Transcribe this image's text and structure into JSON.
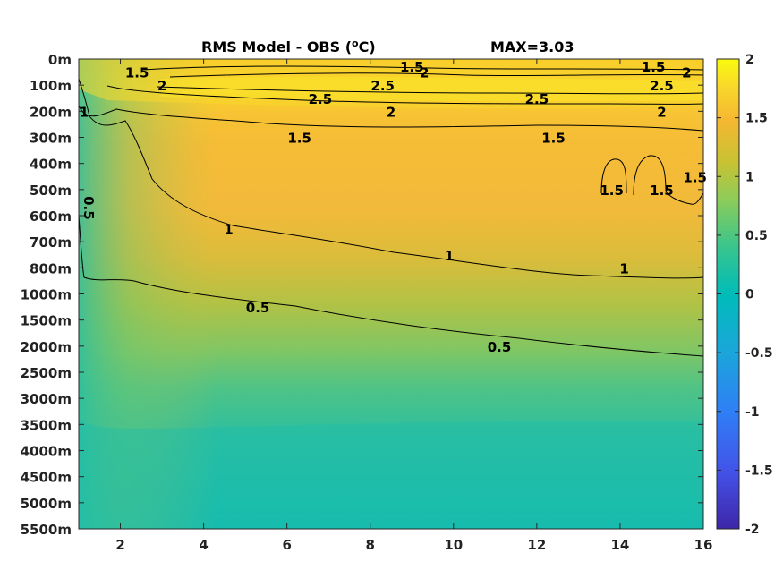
{
  "chart_data": {
    "type": "heatmap",
    "title": "RMS Model - OBS (°C)",
    "title_parts": {
      "main": "RMS Model - OBS (",
      "superscript": "o",
      "unit_end": "C)"
    },
    "max_label": "MAX=3.03",
    "x_ticks": [
      "2",
      "4",
      "6",
      "8",
      "10",
      "12",
      "14",
      "16"
    ],
    "x_tick_values": [
      2,
      4,
      6,
      8,
      10,
      12,
      14,
      16
    ],
    "xlim": [
      1,
      16
    ],
    "y_tick_labels": [
      "0m",
      "100m",
      "200m",
      "300m",
      "400m",
      "500m",
      "600m",
      "700m",
      "800m",
      "1000m",
      "1500m",
      "2000m",
      "2500m",
      "3000m",
      "3500m",
      "4000m",
      "4500m",
      "5000m",
      "5500m"
    ],
    "y_axis_reversed": true,
    "colorbar": {
      "ticks": [
        "2",
        "1.5",
        "1",
        "0.5",
        "0",
        "-0.5",
        "-1",
        "-1.5",
        "-2"
      ],
      "range": [
        -2,
        2
      ],
      "colormap": [
        "#3e26a8",
        "#4352e8",
        "#2f7ff6",
        "#1aa7d9",
        "#00bcb9",
        "#39c58c",
        "#8ccc5a",
        "#c8c233",
        "#f5b731",
        "#f9d72b",
        "#f9fb0e"
      ]
    },
    "contour_labels": [
      {
        "text": "1.5",
        "x": 2.4,
        "depth": "0-100m"
      },
      {
        "text": "2",
        "x": 3.0,
        "depth": "100m"
      },
      {
        "text": "1.5",
        "x": 9.0,
        "depth": "0m"
      },
      {
        "text": "2",
        "x": 9.3,
        "depth": "0-100m"
      },
      {
        "text": "2.5",
        "x": 8.3,
        "depth": "100m"
      },
      {
        "text": "2.5",
        "x": 6.8,
        "depth": "100-200m"
      },
      {
        "text": "2",
        "x": 8.5,
        "depth": "200m"
      },
      {
        "text": "1.5",
        "x": 6.3,
        "depth": "300m"
      },
      {
        "text": "1.5",
        "x": 14.8,
        "depth": "0m"
      },
      {
        "text": "2",
        "x": 15.6,
        "depth": "0-100m"
      },
      {
        "text": "2.5",
        "x": 15.0,
        "depth": "100m"
      },
      {
        "text": "2.5",
        "x": 12.0,
        "depth": "100-200m"
      },
      {
        "text": "2",
        "x": 15.0,
        "depth": "200m"
      },
      {
        "text": "1.5",
        "x": 12.4,
        "depth": "300m"
      },
      {
        "text": "1",
        "x": 1.1,
        "depth": "200m"
      },
      {
        "text": "0.5",
        "x": 1.0,
        "depth": "500-600m"
      },
      {
        "text": "1",
        "x": 4.6,
        "depth": "600-700m"
      },
      {
        "text": "1",
        "x": 9.9,
        "depth": "700-800m"
      },
      {
        "text": "1",
        "x": 14.1,
        "depth": "800m"
      },
      {
        "text": "1.5",
        "x": 13.8,
        "depth": "500m"
      },
      {
        "text": "1.5",
        "x": 15.0,
        "depth": "500m"
      },
      {
        "text": "1.5",
        "x": 15.8,
        "depth": "400-500m"
      },
      {
        "text": "0.5",
        "x": 5.3,
        "depth": "1000-1500m"
      },
      {
        "text": "0.5",
        "x": 11.1,
        "depth": "2000m"
      }
    ],
    "description_values": {
      "surface_layer_rms": "2.5 max near 100-200m",
      "deep_rms": "approx 0.2 below 3000m"
    }
  }
}
